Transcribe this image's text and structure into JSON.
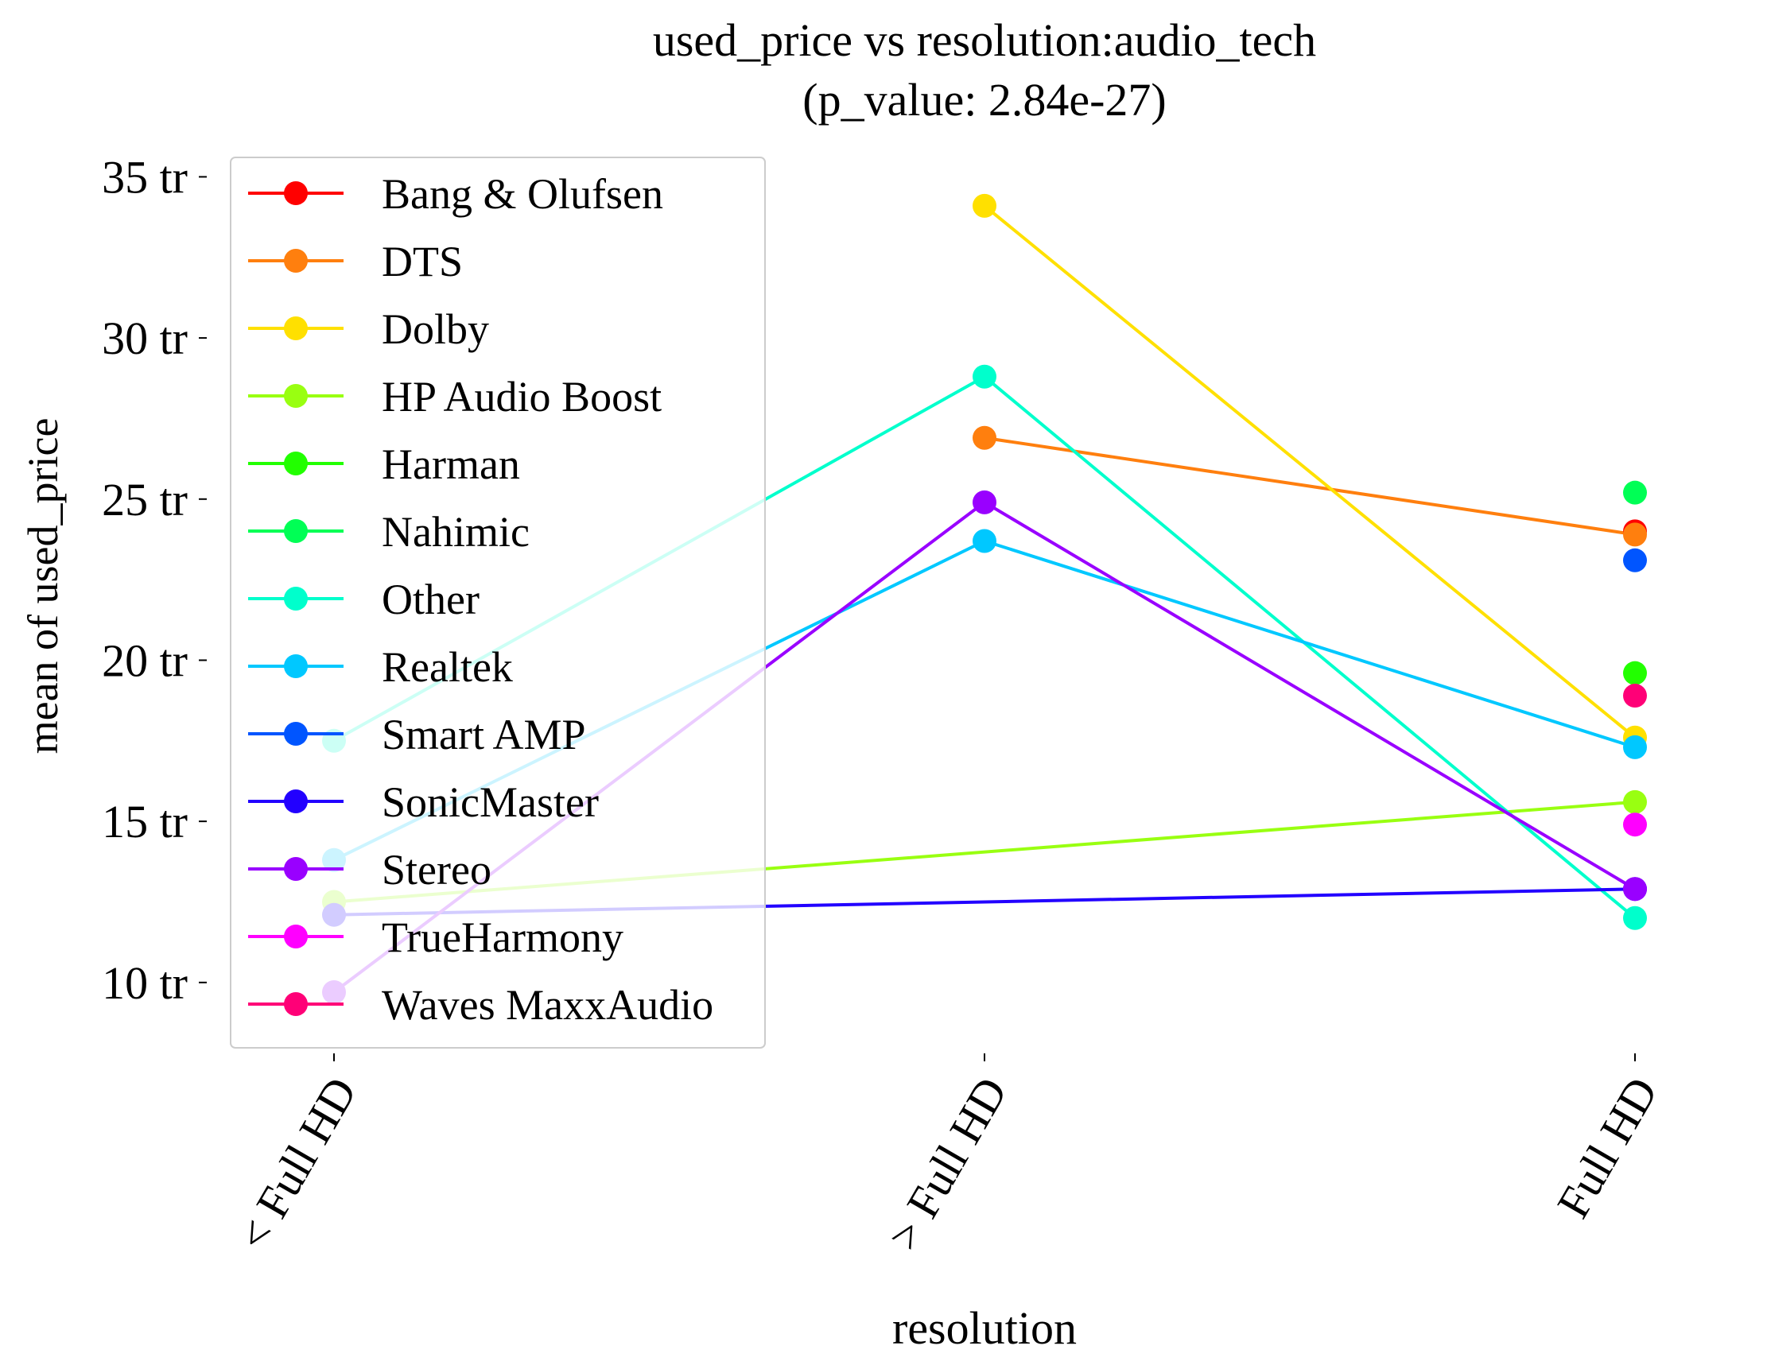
{
  "chart_data": {
    "type": "line",
    "title": "used_price vs resolution:audio_tech",
    "subtitle": "(p_value: 2.84e-27)",
    "xlabel": "resolution",
    "ylabel": "mean of used_price",
    "categories": [
      "< Full HD",
      "> Full HD",
      "Full HD"
    ],
    "ylim": [
      7.8,
      35.8
    ],
    "yticks": [
      10,
      15,
      20,
      25,
      30,
      35
    ],
    "ytick_labels": [
      "10 tr",
      "15 tr",
      "20 tr",
      "25 tr",
      "30 tr",
      "35 tr"
    ],
    "grid": false,
    "legend_position": "upper-left",
    "series": [
      {
        "name": "Bang & Olufsen",
        "color": "#ff0000",
        "values": [
          null,
          null,
          24.0
        ]
      },
      {
        "name": "DTS",
        "color": "#ff7f0e",
        "values": [
          null,
          26.9,
          23.9
        ]
      },
      {
        "name": "Dolby",
        "color": "#ffe000",
        "values": [
          null,
          34.1,
          17.6
        ]
      },
      {
        "name": "HP Audio Boost",
        "color": "#99ff11",
        "values": [
          12.5,
          null,
          15.6
        ]
      },
      {
        "name": "Harman",
        "color": "#22ff00",
        "values": [
          null,
          null,
          19.6
        ]
      },
      {
        "name": "Nahimic",
        "color": "#00ff55",
        "values": [
          null,
          null,
          25.2
        ]
      },
      {
        "name": "Other",
        "color": "#00ffcc",
        "values": [
          17.5,
          28.8,
          12.0
        ]
      },
      {
        "name": "Realtek",
        "color": "#00c8ff",
        "values": [
          13.8,
          23.7,
          17.3
        ]
      },
      {
        "name": "Smart AMP",
        "color": "#0055ff",
        "values": [
          null,
          null,
          23.1
        ]
      },
      {
        "name": "SonicMaster",
        "color": "#2200ff",
        "values": [
          12.1,
          null,
          12.9
        ]
      },
      {
        "name": "Stereo",
        "color": "#9900ff",
        "values": [
          9.7,
          24.9,
          12.9
        ]
      },
      {
        "name": "TrueHarmony",
        "color": "#ff00ff",
        "values": [
          null,
          null,
          14.9
        ]
      },
      {
        "name": "Waves MaxxAudio",
        "color": "#ff0077",
        "values": [
          null,
          null,
          18.9
        ]
      }
    ]
  }
}
